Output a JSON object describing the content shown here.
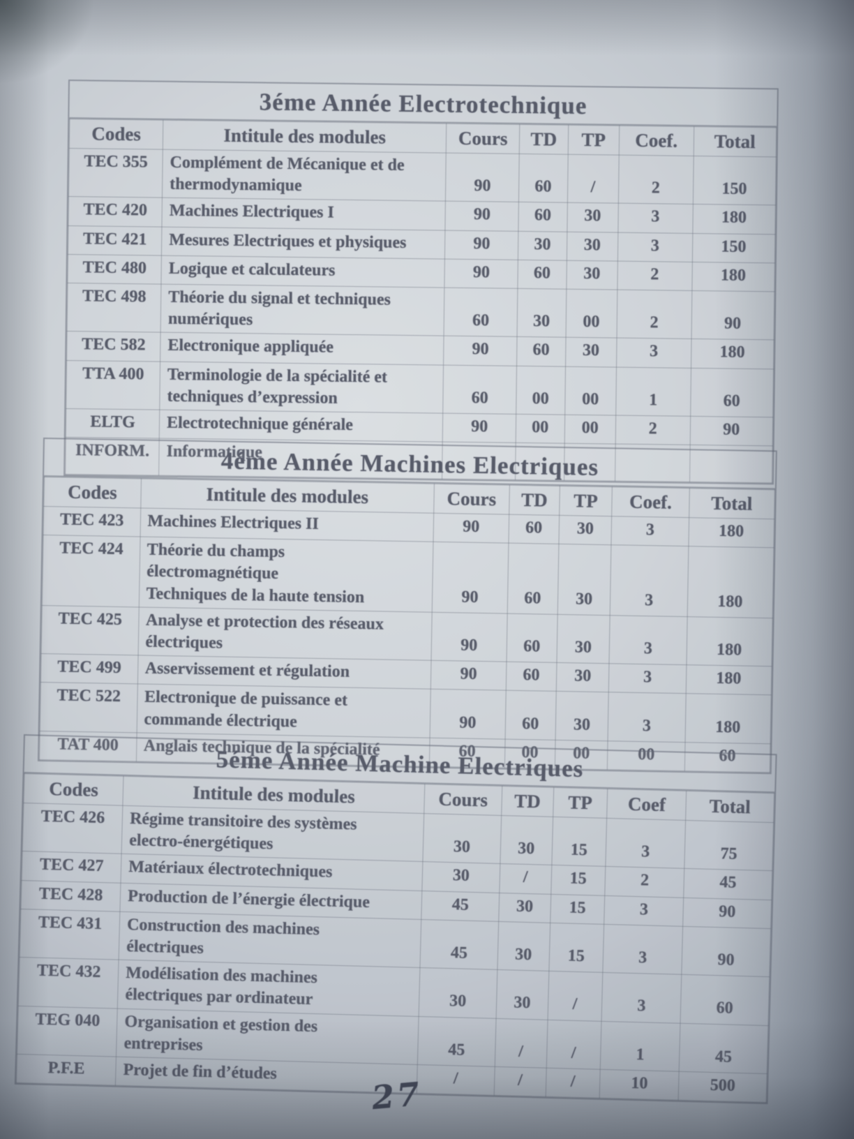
{
  "page": {
    "handwritten_page_number": "27",
    "paper_color": "#cdd2d7",
    "ink_color": "#575b69"
  },
  "tables": [
    {
      "title": "3éme Année Electrotechnique",
      "columns": [
        "Codes",
        "Intitule des modules",
        "Cours",
        "TD",
        "TP",
        "Coef.",
        "Total"
      ],
      "rows": [
        [
          "TEC 355",
          "Complément de Mécanique et de\nthermodynamique",
          "90",
          "60",
          "/",
          "2",
          "150"
        ],
        [
          "TEC 420",
          "Machines Electriques I",
          "90",
          "60",
          "30",
          "3",
          "180"
        ],
        [
          "TEC 421",
          "Mesures Electriques et physiques",
          "90",
          "30",
          "30",
          "3",
          "150"
        ],
        [
          "TEC 480",
          "Logique et calculateurs",
          "90",
          "60",
          "30",
          "2",
          "180"
        ],
        [
          "TEC 498",
          "Théorie du signal et techniques\nnumériques",
          "60",
          "30",
          "00",
          "2",
          "90"
        ],
        [
          "TEC 582",
          "Electronique appliquée",
          "90",
          "60",
          "30",
          "3",
          "180"
        ],
        [
          "TTA 400",
          "Terminologie de la spécialité et\ntechniques d’expression",
          "60",
          "00",
          "00",
          "1",
          "60"
        ],
        [
          "ELTG",
          "Electrotechnique générale",
          "90",
          "00",
          "00",
          "2",
          "90"
        ],
        [
          "INFORM.",
          "Informatique",
          "",
          "",
          "",
          "",
          ""
        ]
      ]
    },
    {
      "title": "4éme Année Machines Electriques",
      "columns": [
        "Codes",
        "Intitule des modules",
        "Cours",
        "TD",
        "TP",
        "Coef.",
        "Total"
      ],
      "rows": [
        [
          "TEC 423",
          "Machines Electriques II",
          "90",
          "60",
          "30",
          "3",
          "180"
        ],
        [
          "TEC 424",
          "Théorie du champs\nélectromagnétique\nTechniques de la haute tension",
          "90",
          "60",
          "30",
          "3",
          "180"
        ],
        [
          "TEC 425",
          "Analyse et protection des réseaux\nélectriques",
          "90",
          "60",
          "30",
          "3",
          "180"
        ],
        [
          "TEC 499",
          "Asservissement et régulation",
          "90",
          "60",
          "30",
          "3",
          "180"
        ],
        [
          "TEC 522",
          "Electronique de puissance et\ncommande électrique",
          "90",
          "60",
          "30",
          "3",
          "180"
        ],
        [
          "TAT 400",
          "Anglais technique de la spécialité",
          "60",
          "00",
          "00",
          "00",
          "60"
        ]
      ]
    },
    {
      "title": "5éme Année Machine Electriques",
      "columns": [
        "Codes",
        "Intitule des modules",
        "Cours",
        "TD",
        "TP",
        "Coef",
        "Total"
      ],
      "rows": [
        [
          "TEC 426",
          "Régime transitoire des systèmes\nelectro-énergétiques",
          "30",
          "30",
          "15",
          "3",
          "75"
        ],
        [
          "TEC 427",
          "Matériaux électrotechniques",
          "30",
          "/",
          "15",
          "2",
          "45"
        ],
        [
          "TEC 428",
          "Production de l’énergie électrique",
          "45",
          "30",
          "15",
          "3",
          "90"
        ],
        [
          "TEC 431",
          "Construction des machines\nélectriques",
          "45",
          "30",
          "15",
          "3",
          "90"
        ],
        [
          "TEC 432",
          "Modélisation des machines\nélectriques par ordinateur",
          "30",
          "30",
          "/",
          "3",
          "60"
        ],
        [
          "TEG 040",
          "Organisation et gestion des\nentreprises",
          "45",
          "/",
          "/",
          "1",
          "45"
        ],
        [
          "P.F.E",
          "Projet de fin d’études",
          "/",
          "/",
          "/",
          "10",
          "500"
        ]
      ]
    }
  ]
}
